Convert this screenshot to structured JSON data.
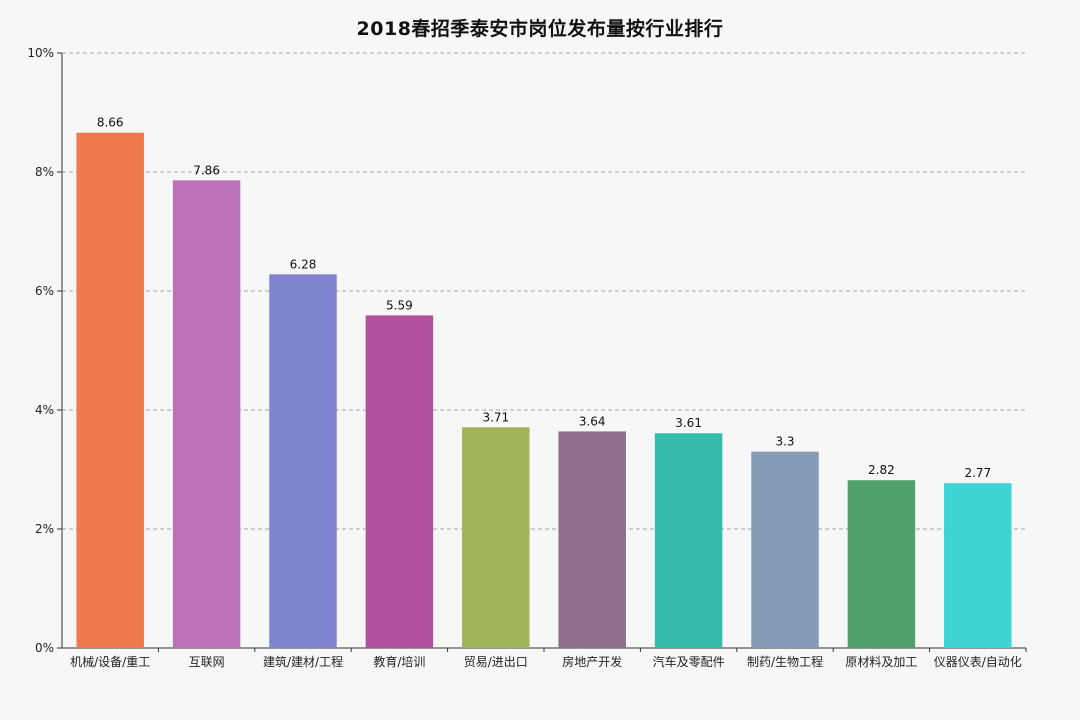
{
  "chart_data": {
    "type": "bar",
    "title": "2018春招季泰安市岗位发布量按行业排行",
    "xlabel": "",
    "ylabel": "",
    "ylim": [
      0,
      10
    ],
    "y_ticks": [
      0,
      2,
      4,
      6,
      8,
      10
    ],
    "y_tick_labels": [
      "0%",
      "2%",
      "4%",
      "6%",
      "8%",
      "10%"
    ],
    "grid": true,
    "categories": [
      "机械/设备/重工",
      "互联网",
      "建筑/建材/工程",
      "教育/培训",
      "贸易/进出口",
      "房地产开发",
      "汽车及零配件",
      "制药/生物工程",
      "原材料及加工",
      "仪器仪表/自动化"
    ],
    "values": [
      8.66,
      7.86,
      6.28,
      5.59,
      3.71,
      3.64,
      3.61,
      3.3,
      2.82,
      2.77
    ],
    "value_labels": [
      "8.66",
      "7.86",
      "6.28",
      "5.59",
      "3.71",
      "3.64",
      "3.61",
      "3.3",
      "2.82",
      "2.77"
    ],
    "colors": [
      "#f0794c",
      "#bb72b8",
      "#8084cf",
      "#b0509e",
      "#a2b45a",
      "#8d6f8b",
      "#35bda9",
      "#869bb6",
      "#52a16a",
      "#3fd3d3"
    ]
  }
}
